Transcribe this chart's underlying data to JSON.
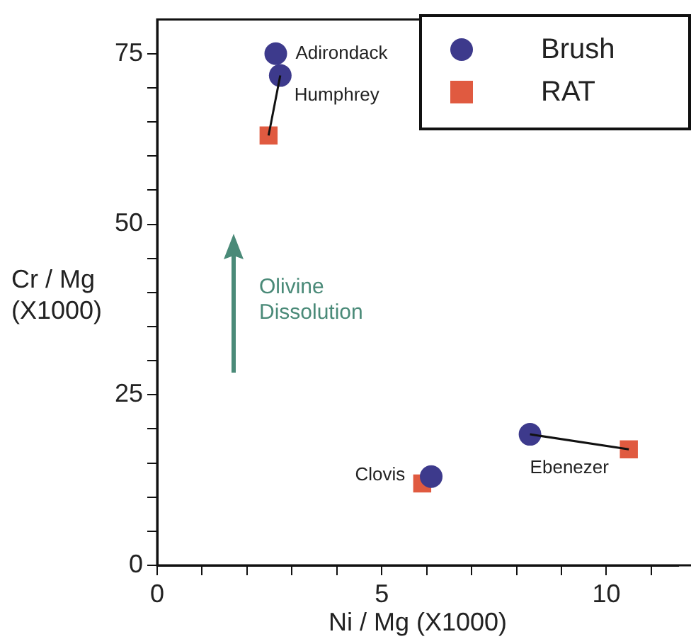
{
  "chart_data": {
    "type": "scatter",
    "xlabel": "Ni / Mg (X1000)",
    "ylabel": "Cr / Mg\n(X1000)",
    "xlim": [
      0,
      11.6
    ],
    "ylim": [
      0,
      80
    ],
    "xticks": [
      0,
      {
        "value": 1,
        "label": null
      },
      {
        "value": 2,
        "label": null
      },
      {
        "value": 3,
        "label": null
      },
      {
        "value": 4,
        "label": null
      },
      5,
      {
        "value": 6,
        "label": null
      },
      {
        "value": 7,
        "label": null
      },
      {
        "value": 8,
        "label": null
      },
      {
        "value": 9,
        "label": null
      },
      10,
      {
        "value": 11,
        "label": null
      }
    ],
    "yticks": [
      0,
      {
        "value": 5,
        "label": null
      },
      {
        "value": 10,
        "label": null
      },
      {
        "value": 15,
        "label": null
      },
      {
        "value": 20,
        "label": null
      },
      25,
      {
        "value": 30,
        "label": null
      },
      {
        "value": 35,
        "label": null
      },
      {
        "value": 40,
        "label": null
      },
      {
        "value": 45,
        "label": null
      },
      50,
      {
        "value": 55,
        "label": null
      },
      {
        "value": 60,
        "label": null
      },
      {
        "value": 65,
        "label": null
      },
      {
        "value": 70,
        "label": null
      },
      75
    ],
    "legend": "top right",
    "series": [
      {
        "type": "line",
        "color": "#111111",
        "x": [
          2.74,
          2.48
        ],
        "values": [
          71.8,
          63
        ],
        "marker": "none"
      },
      {
        "type": "line",
        "color": "#111111",
        "x": [
          8.3,
          10.5
        ],
        "values": [
          19.2,
          17
        ],
        "marker": "none"
      },
      {
        "name": "Brush",
        "color": "#3d3a8c",
        "marker": "circle",
        "x": [
          2.64,
          2.74,
          6.1,
          8.3
        ],
        "values": [
          75,
          71.8,
          13,
          19.2
        ]
      },
      {
        "name": "RAT",
        "color": "#e05a40",
        "marker": "square",
        "x": [
          2.48,
          5.9,
          10.5
        ],
        "values": [
          63,
          12,
          17
        ]
      }
    ],
    "annotations": [
      {
        "text": "Adirondack",
        "x": 2.64,
        "y": 75
      },
      {
        "text": "Humphrey",
        "x": 2.74,
        "y": 71.8
      },
      {
        "text": "Clovis",
        "x": 5.9,
        "y": 12
      },
      {
        "text": "Ebenezer",
        "x": 8.3,
        "y": 19.2
      },
      "Olivine\nDissolution"
    ]
  }
}
